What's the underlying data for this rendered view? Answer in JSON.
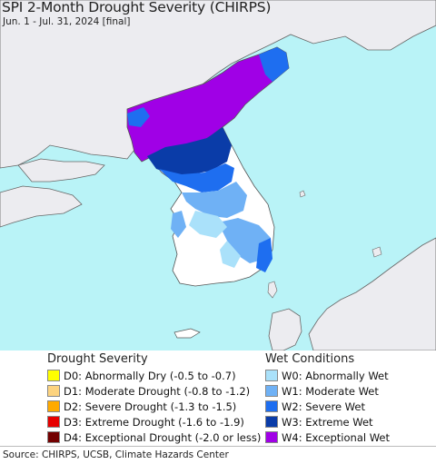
{
  "title": "SPI 2-Month Drought Severity (CHIRPS)",
  "subtitle": "Jun. 1 - Jul. 31, 2024 [final]",
  "colors": {
    "sea": "#b9f3f7",
    "land": "#ececf0",
    "land_no_data": "#ffffff",
    "border": "#666666"
  },
  "legend": {
    "drought": {
      "heading": "Drought Severity",
      "items": [
        {
          "label": "D0: Abnormally Dry (-0.5 to -0.7)",
          "color": "#ffff00"
        },
        {
          "label": "D1: Moderate Drought (-0.8 to -1.2)",
          "color": "#fcd37f"
        },
        {
          "label": "D2: Severe Drought (-1.3 to -1.5)",
          "color": "#ffaa00"
        },
        {
          "label": "D3: Extreme Drought (-1.6 to -1.9)",
          "color": "#e60000"
        },
        {
          "label": "D4: Exceptional Drought (-2.0 or less)",
          "color": "#730000"
        }
      ]
    },
    "wet": {
      "heading": "Wet Conditions",
      "items": [
        {
          "label": "W0: Abnormally Wet",
          "color": "#aae1fa"
        },
        {
          "label": "W1: Moderate Wet",
          "color": "#6fb1f5"
        },
        {
          "label": "W2: Severe Wet",
          "color": "#1e6ef0"
        },
        {
          "label": "W3: Extreme Wet",
          "color": "#0a3ca8"
        },
        {
          "label": "W4: Exceptional Wet",
          "color": "#a000e6"
        }
      ]
    }
  },
  "source": "Source: CHIRPS, UCSB, Climate Hazards Center"
}
